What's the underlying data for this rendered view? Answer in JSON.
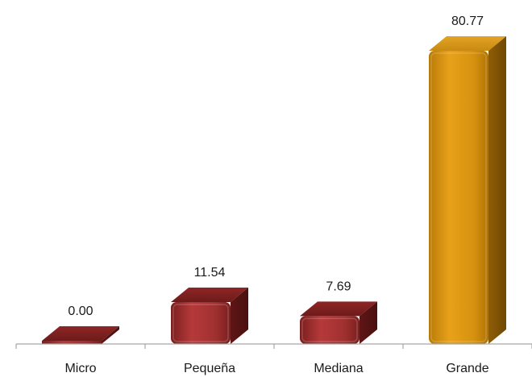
{
  "chart_data": {
    "type": "bar",
    "style": "3d-rounded-bars",
    "categories": [
      "Micro",
      "Pequeña",
      "Mediana",
      "Grande"
    ],
    "values": [
      0.0,
      11.54,
      7.69,
      80.77
    ],
    "value_labels": [
      "0.00",
      "11.54",
      "7.69",
      "80.77"
    ],
    "title": "",
    "xlabel": "",
    "ylabel": "",
    "ylim": [
      0,
      85
    ],
    "grid": false,
    "legend": "none",
    "colors": {
      "default": "#9b2b2b",
      "highlight": "#d9900f",
      "axis": "#a6a6a6"
    },
    "highlight_category": "Grande"
  }
}
